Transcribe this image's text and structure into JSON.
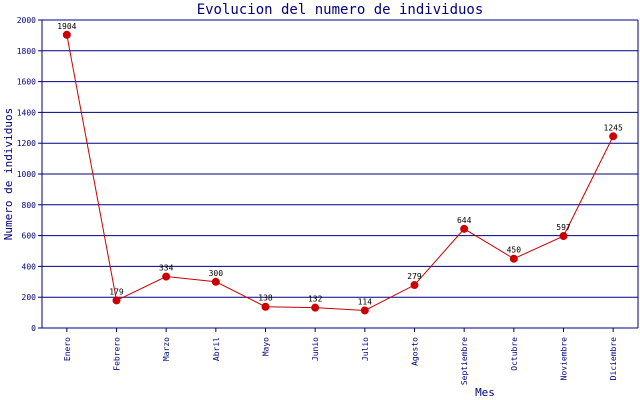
{
  "chart_data": {
    "type": "line",
    "title": "Evolucion del numero de individuos",
    "xlabel": "Mes",
    "ylabel": "Numero de individuos",
    "categories": [
      "Enero",
      "Febrero",
      "Marzo",
      "Abril",
      "Mayo",
      "Junio",
      "Julio",
      "Agosto",
      "Septiembre",
      "Octubre",
      "Noviembre",
      "Diciembre"
    ],
    "series": [
      {
        "values": [
          1904,
          179,
          334,
          300,
          138,
          132,
          114,
          279,
          644,
          450,
          597,
          1245
        ]
      }
    ],
    "ylim": [
      0,
      2000
    ],
    "yticks": [
      0,
      200,
      400,
      600,
      800,
      1000,
      1200,
      1400,
      1600,
      1800,
      2000
    ],
    "grid": true,
    "colors": {
      "line": "#cc0000",
      "marker": "#cc0000",
      "grid": "#000080",
      "axis": "#000080",
      "text": "#000080"
    }
  }
}
